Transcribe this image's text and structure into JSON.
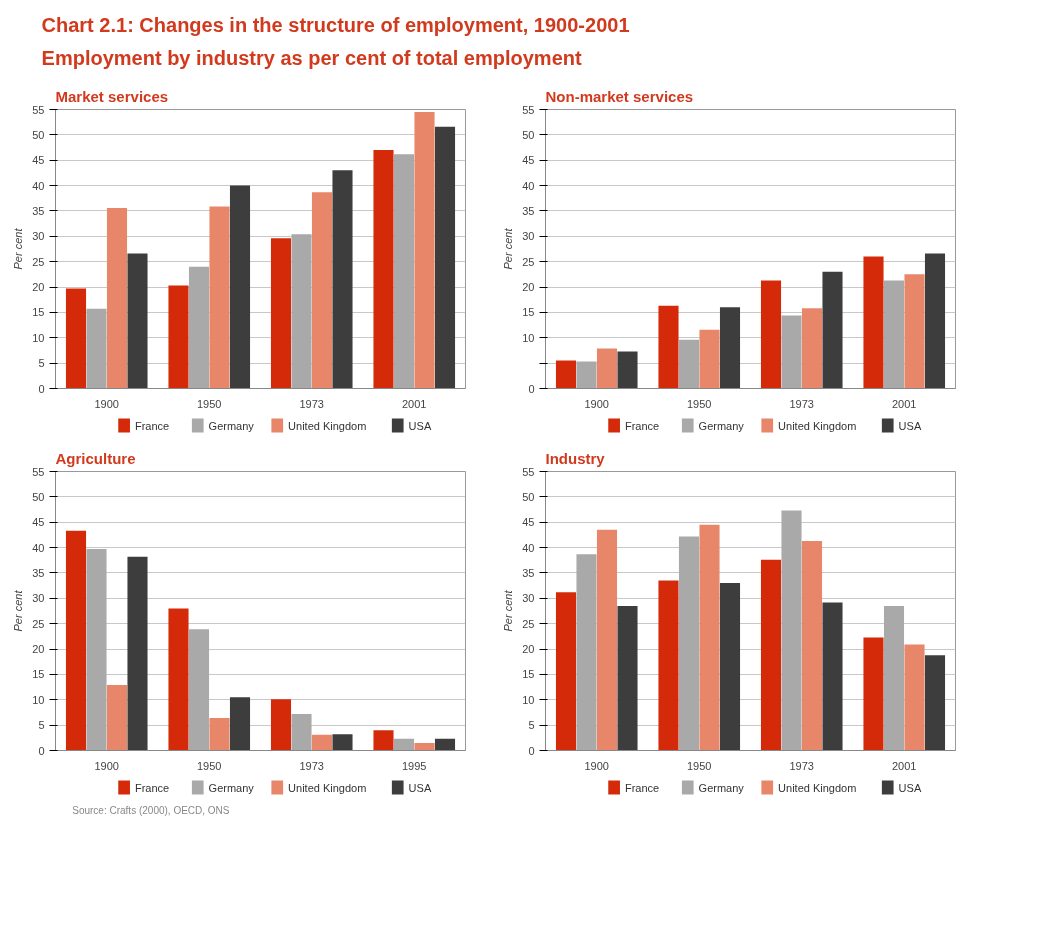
{
  "chart_data": [
    {
      "type": "other",
      "title": "Chart 2.1: Changes in the structure of employment, 1900-2001",
      "subtitle": "Employment by industry as per cent of total employment"
    },
    {
      "type": "bar",
      "title": "Market services",
      "ylabel": "Per cent",
      "categories": [
        "1900",
        "1950",
        "1973",
        "2001"
      ],
      "ylim": [
        0,
        55
      ],
      "yticks": [
        0,
        5,
        10,
        15,
        20,
        25,
        30,
        35,
        40,
        45,
        50,
        55
      ],
      "grid": "y",
      "legend": "bottom",
      "series": [
        {
          "name": "France",
          "color": "#d42a0a",
          "values": [
            19.7,
            20.3,
            29.6,
            47
          ]
        },
        {
          "name": "Germany",
          "color": "#a9a9a9",
          "values": [
            15.7,
            24,
            30.4,
            46.2
          ]
        },
        {
          "name": "United Kingdom",
          "color": "#e8866a",
          "values": [
            35.6,
            35.9,
            38.7,
            54.5
          ]
        },
        {
          "name": "USA",
          "color": "#3d3d3d",
          "values": [
            26.6,
            40,
            43,
            51.6
          ]
        }
      ]
    },
    {
      "type": "bar",
      "title": "Non-market services",
      "ylabel": "Per cent",
      "categories": [
        "1900",
        "1950",
        "1973",
        "2001"
      ],
      "ylim": [
        0,
        55
      ],
      "yticks": [
        0,
        {
          "value": 5,
          "label": null
        },
        10,
        15,
        20,
        25,
        30,
        35,
        40,
        45,
        50,
        55
      ],
      "grid": "y",
      "legend": "bottom",
      "series": [
        {
          "name": "France",
          "color": "#d42a0a",
          "values": [
            5.5,
            16.3,
            21.3,
            26
          ]
        },
        {
          "name": "Germany",
          "color": "#a9a9a9",
          "values": [
            5.3,
            9.6,
            14.4,
            21.3
          ]
        },
        {
          "name": "United Kingdom",
          "color": "#e8866a",
          "values": [
            7.9,
            11.6,
            15.8,
            22.5
          ]
        },
        {
          "name": "USA",
          "color": "#3d3d3d",
          "values": [
            7.3,
            16,
            23,
            26.6
          ]
        }
      ]
    },
    {
      "type": "bar",
      "title": "Agriculture",
      "ylabel": "Per cent",
      "categories": [
        "1900",
        "1950",
        "1973",
        "1995"
      ],
      "ylim": [
        0,
        55
      ],
      "yticks": [
        0,
        5,
        10,
        15,
        20,
        25,
        30,
        35,
        40,
        45,
        50,
        55
      ],
      "grid": "y",
      "legend": "bottom",
      "annotations": [
        "Source: Crafts (2000), OECD, ONS"
      ],
      "series": [
        {
          "name": "France",
          "color": "#d42a0a",
          "values": [
            43.3,
            28,
            10.1,
            4
          ]
        },
        {
          "name": "Germany",
          "color": "#a9a9a9",
          "values": [
            39.7,
            23.9,
            7.2,
            2.3
          ]
        },
        {
          "name": "United Kingdom",
          "color": "#e8866a",
          "values": [
            12.9,
            6.4,
            3.1,
            1.5
          ]
        },
        {
          "name": "USA",
          "color": "#3d3d3d",
          "values": [
            38.2,
            10.5,
            3.2,
            2.3
          ]
        }
      ]
    },
    {
      "type": "bar",
      "title": "Industry",
      "ylabel": "Per cent",
      "categories": [
        "1900",
        "1950",
        "1973",
        "2001"
      ],
      "ylim": [
        0,
        55
      ],
      "yticks": [
        0,
        5,
        10,
        15,
        20,
        25,
        30,
        35,
        40,
        45,
        50,
        55
      ],
      "grid": "y",
      "legend": "bottom",
      "series": [
        {
          "name": "France",
          "color": "#d42a0a",
          "values": [
            31.2,
            33.5,
            37.6,
            22.3
          ]
        },
        {
          "name": "Germany",
          "color": "#a9a9a9",
          "values": [
            38.7,
            42.2,
            47.3,
            28.5
          ]
        },
        {
          "name": "United Kingdom",
          "color": "#e8866a",
          "values": [
            43.5,
            44.5,
            41.3,
            20.9
          ]
        },
        {
          "name": "USA",
          "color": "#3d3d3d",
          "values": [
            28.5,
            33,
            29.2,
            18.8
          ]
        }
      ]
    }
  ]
}
